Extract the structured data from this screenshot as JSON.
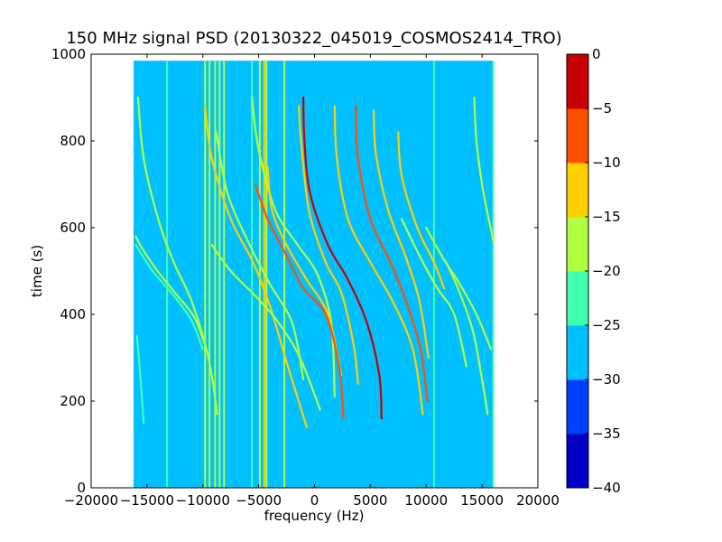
{
  "chart_data": {
    "type": "heatmap",
    "title": "150 MHz signal PSD (20130322_045019_COSMOS2414_TRO)",
    "xlabel": "frequency (Hz)",
    "ylabel": "time (s)",
    "xlim": [
      -20000,
      20000
    ],
    "ylim": [
      0,
      1000
    ],
    "x_ticks": [
      -20000,
      -15000,
      -10000,
      -5000,
      0,
      5000,
      10000,
      15000,
      20000
    ],
    "x_tick_labels": [
      "−20000",
      "−15000",
      "−10000",
      "−5000",
      "0",
      "5000",
      "10000",
      "15000",
      "20000"
    ],
    "y_ticks": [
      0,
      200,
      400,
      600,
      800,
      1000
    ],
    "y_tick_labels": [
      "0",
      "200",
      "400",
      "600",
      "800",
      "1000"
    ],
    "data_extent": {
      "x": [
        -16200,
        16000
      ],
      "y": [
        0,
        985
      ]
    },
    "background_level": -27.5,
    "background_color": "#00c0ff",
    "grid": false,
    "colorbar": {
      "levels": [
        -40,
        -35,
        -30,
        -25,
        -20,
        -15,
        -10,
        -5,
        0
      ],
      "tick_labels": [
        "−40",
        "−35",
        "−30",
        "−25",
        "−20",
        "−15",
        "−10",
        "−5",
        "0"
      ],
      "colors": [
        "#0000c8",
        "#0040ff",
        "#00c0ff",
        "#40ffb0",
        "#b0ff40",
        "#ffd000",
        "#ff5000",
        "#c80000"
      ]
    },
    "series": [
      {
        "kind": "vertical",
        "x": -13200,
        "y": [
          0,
          985
        ],
        "level": -24
      },
      {
        "kind": "vertical",
        "x": -9800,
        "y": [
          0,
          985
        ],
        "level": -20
      },
      {
        "kind": "vertical",
        "x": -9400,
        "y": [
          0,
          985
        ],
        "level": -18
      },
      {
        "kind": "vertical",
        "x": -8900,
        "y": [
          0,
          985
        ],
        "level": -17
      },
      {
        "kind": "vertical",
        "x": -8500,
        "y": [
          0,
          985
        ],
        "level": -16
      },
      {
        "kind": "vertical",
        "x": -8100,
        "y": [
          0,
          985
        ],
        "level": -20
      },
      {
        "kind": "vertical",
        "x": -5600,
        "y": [
          0,
          985
        ],
        "level": -22
      },
      {
        "kind": "vertical",
        "x": -4900,
        "y": [
          0,
          985
        ],
        "level": -18
      },
      {
        "kind": "vertical",
        "x": -4500,
        "y": [
          0,
          985
        ],
        "level": -15
      },
      {
        "kind": "vertical",
        "x": -4300,
        "y": [
          0,
          985
        ],
        "level": -19
      },
      {
        "kind": "vertical",
        "x": -2700,
        "y": [
          0,
          985
        ],
        "level": -20
      },
      {
        "kind": "vertical",
        "x": 10700,
        "y": [
          0,
          985
        ],
        "level": -23
      },
      {
        "kind": "vertical",
        "x": 16000,
        "y": [
          0,
          985
        ],
        "level": -22
      },
      {
        "kind": "doppler",
        "x": [
          -16000,
          -15500,
          -14200,
          -12500,
          -10800,
          -9800
        ],
        "y": [
          580,
          555,
          505,
          450,
          395,
          330
        ],
        "level": -19
      },
      {
        "kind": "doppler",
        "x": [
          -16000,
          -14500,
          -12500,
          -11000,
          -10000
        ],
        "y": [
          560,
          500,
          440,
          385,
          320
        ],
        "level": -21
      },
      {
        "kind": "doppler",
        "x": [
          -15800,
          -15300,
          -14000,
          -12600,
          -11000,
          -9500,
          -8700
        ],
        "y": [
          900,
          760,
          620,
          520,
          430,
          300,
          170
        ],
        "level": -18
      },
      {
        "kind": "doppler",
        "x": [
          -15900,
          -15600,
          -15300
        ],
        "y": [
          350,
          260,
          150
        ],
        "level": -21
      },
      {
        "kind": "doppler",
        "x": [
          -9800,
          -9200,
          -7500,
          -5500,
          -4000,
          -2500,
          -700
        ],
        "y": [
          880,
          760,
          620,
          520,
          420,
          290,
          140
        ],
        "level": -13
      },
      {
        "kind": "doppler",
        "x": [
          -8800,
          -7800,
          -5800,
          -4000,
          -2000,
          -1000
        ],
        "y": [
          820,
          680,
          560,
          470,
          380,
          250
        ],
        "level": -17
      },
      {
        "kind": "doppler",
        "x": [
          -9200,
          -7500,
          -5200,
          -3200,
          -1300,
          500
        ],
        "y": [
          560,
          500,
          440,
          380,
          300,
          180
        ],
        "level": -18
      },
      {
        "kind": "doppler",
        "x": [
          -5600,
          -5000,
          -3500,
          -1500,
          300,
          1500,
          1800
        ],
        "y": [
          900,
          780,
          640,
          560,
          490,
          380,
          210
        ],
        "level": -17
      },
      {
        "kind": "doppler",
        "x": [
          -1400,
          -1200,
          -500,
          1000,
          2400,
          3500,
          3900
        ],
        "y": [
          880,
          800,
          640,
          520,
          450,
          330,
          240
        ],
        "level": -14
      },
      {
        "kind": "doppler",
        "x": [
          -4200,
          -3800,
          -2500,
          -700,
          1200,
          2400
        ],
        "y": [
          740,
          640,
          560,
          480,
          400,
          260
        ],
        "level": -15
      },
      {
        "kind": "doppler",
        "x": [
          -5300,
          -4200,
          -2600,
          -1000,
          1000,
          2200,
          2600
        ],
        "y": [
          700,
          620,
          540,
          460,
          400,
          280,
          160
        ],
        "level": -10
      },
      {
        "kind": "doppler",
        "x": [
          -1000,
          -900,
          -400,
          1200,
          3000,
          4700,
          5800,
          6000
        ],
        "y": [
          900,
          800,
          680,
          560,
          480,
          380,
          260,
          160
        ],
        "level": -5
      },
      {
        "kind": "doppler",
        "x": [
          1800,
          2000,
          3000,
          5000,
          7000,
          8800,
          9700
        ],
        "y": [
          880,
          760,
          620,
          520,
          430,
          320,
          170
        ],
        "level": -13
      },
      {
        "kind": "doppler",
        "x": [
          3700,
          3900,
          5000,
          6800,
          8200,
          9500,
          10100
        ],
        "y": [
          880,
          760,
          620,
          520,
          430,
          320,
          200
        ],
        "level": -7
      },
      {
        "kind": "doppler",
        "x": [
          5300,
          5500,
          6600,
          8200,
          9400,
          10200
        ],
        "y": [
          870,
          770,
          640,
          530,
          430,
          300
        ],
        "level": -12
      },
      {
        "kind": "doppler",
        "x": [
          7500,
          7800,
          9200,
          10700,
          11600
        ],
        "y": [
          820,
          720,
          600,
          520,
          460
        ],
        "level": -15
      },
      {
        "kind": "doppler",
        "x": [
          7800,
          9500,
          11000,
          12500,
          13600
        ],
        "y": [
          620,
          530,
          460,
          400,
          280
        ],
        "level": -18
      },
      {
        "kind": "doppler",
        "x": [
          10000,
          11500,
          13000,
          14500,
          15800
        ],
        "y": [
          600,
          530,
          470,
          400,
          320
        ],
        "level": -19
      },
      {
        "kind": "doppler",
        "x": [
          11800,
          13000,
          14200,
          15000,
          15500
        ],
        "y": [
          520,
          450,
          360,
          250,
          170
        ],
        "level": -20
      },
      {
        "kind": "doppler",
        "x": [
          14300,
          14500,
          15000,
          15600,
          16000
        ],
        "y": [
          900,
          800,
          700,
          620,
          570
        ],
        "level": -19
      }
    ]
  }
}
